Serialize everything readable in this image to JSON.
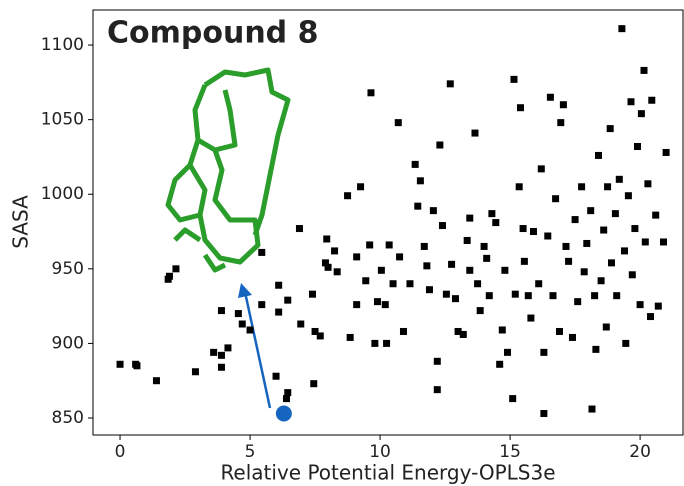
{
  "chart_data": {
    "type": "scatter",
    "title": "Compound 8",
    "xlabel": "Relative Potential Energy-OPLS3e",
    "ylabel": "SASA",
    "xlim": [
      -1.04,
      21.65
    ],
    "ylim": [
      838.6,
      1123.5
    ],
    "xticks": [
      0,
      5,
      10,
      15,
      20
    ],
    "yticks": [
      850,
      900,
      950,
      1000,
      1050,
      1100
    ],
    "color": "#000000",
    "x": [
      0,
      0.6,
      0.65,
      1.4,
      1.85,
      1.9,
      2.15,
      2.9,
      3.6,
      3.9,
      3.9,
      4.15,
      3.9,
      4.55,
      4.7,
      5,
      5.45,
      5.45,
      6.1,
      6.1,
      6.45,
      6,
      6.45,
      6.4,
      6.9,
      6.95,
      7.4,
      7.5,
      7.45,
      7.7,
      7.9,
      7.95,
      8,
      8.25,
      8.35,
      8.75,
      8.85,
      9.1,
      9.1,
      9.25,
      9.45,
      9.6,
      9.65,
      9.8,
      9.9,
      10.05,
      10.2,
      10.25,
      10.35,
      10.7,
      10.5,
      10.75,
      10.9,
      11.15,
      11.35,
      11.45,
      11.55,
      11.7,
      11.8,
      11.9,
      12.05,
      12.2,
      12.2,
      12.3,
      12.4,
      12.55,
      12.7,
      12.75,
      12.9,
      13,
      13.2,
      13.35,
      13.45,
      13.45,
      13.65,
      13.75,
      13.85,
      14,
      14.1,
      14.2,
      14.3,
      14.45,
      14.6,
      14.7,
      14.8,
      14.9,
      15.1,
      15.15,
      15.2,
      15.35,
      15.4,
      15.5,
      15.55,
      15.7,
      15.8,
      15.9,
      16.1,
      16.2,
      16.3,
      16.3,
      16.45,
      16.55,
      16.65,
      16.75,
      16.9,
      16.95,
      17.05,
      17.15,
      17.25,
      17.4,
      17.5,
      17.6,
      17.75,
      17.85,
      17.95,
      18.1,
      18.15,
      18.25,
      18.3,
      18.4,
      18.5,
      18.6,
      18.7,
      18.75,
      18.85,
      18.9,
      19.05,
      19.1,
      19.2,
      19.3,
      19.4,
      19.45,
      19.55,
      19.65,
      19.7,
      19.8,
      19.9,
      20,
      20.05,
      20.15,
      20.2,
      20.3,
      20.4,
      20.45,
      20.6,
      20.7,
      20.9,
      21
    ],
    "y": [
      886,
      886,
      885,
      875,
      943,
      945,
      950,
      881,
      894,
      892,
      884,
      897,
      922,
      920,
      913,
      909,
      926,
      961,
      939,
      921,
      929,
      878,
      867,
      863,
      977,
      913,
      933,
      908,
      873,
      905,
      954,
      970,
      951,
      962,
      948,
      999,
      904,
      958,
      926,
      1005,
      942,
      966,
      1068,
      900,
      928,
      949,
      926,
      900,
      966,
      1048,
      940,
      958,
      908,
      940,
      1020,
      992,
      1009,
      965,
      952,
      936,
      989,
      869,
      888,
      1033,
      979,
      933,
      1074,
      953,
      930,
      908,
      906,
      969,
      984,
      949,
      1041,
      940,
      922,
      965,
      957,
      932,
      987,
      981,
      886,
      909,
      949,
      894,
      863,
      1077,
      933,
      1005,
      1058,
      977,
      955,
      932,
      917,
      975,
      940,
      1017,
      853,
      894,
      972,
      1065,
      932,
      997,
      908,
      1048,
      1060,
      965,
      955,
      904,
      983,
      928,
      1005,
      948,
      967,
      989,
      856,
      932,
      896,
      1026,
      942,
      976,
      911,
      1005,
      1044,
      954,
      987,
      932,
      1010,
      1111,
      962,
      900,
      999,
      1062,
      946,
      977,
      1032,
      926,
      1054,
      1083,
      968,
      1007,
      918,
      1063,
      986,
      925,
      968,
      1028
    ],
    "highlight": {
      "x": 6.3,
      "y": 853,
      "color": "#1565c0"
    }
  }
}
